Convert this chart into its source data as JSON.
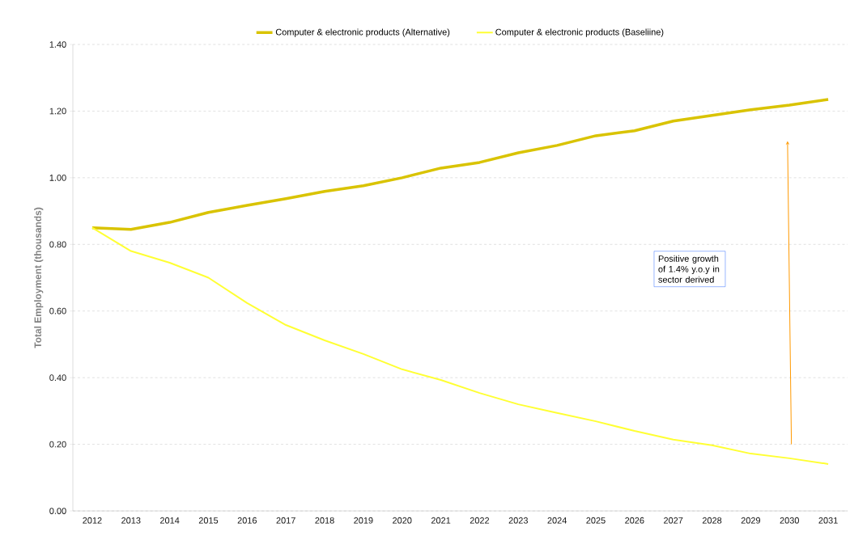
{
  "chart_data": {
    "type": "line",
    "ylabel": "Total Employment (thousands)",
    "categories": [
      "2012",
      "2013",
      "2014",
      "2015",
      "2016",
      "2017",
      "2018",
      "2019",
      "2020",
      "2021",
      "2022",
      "2023",
      "2024",
      "2025",
      "2026",
      "2027",
      "2028",
      "2029",
      "2030",
      "2031"
    ],
    "series": [
      {
        "name": "Computer & electronic products (Alternative)",
        "color": "#d9c300",
        "values": [
          0.85,
          0.845,
          0.866,
          0.896,
          0.917,
          0.937,
          0.959,
          0.976,
          1.0,
          1.029,
          1.046,
          1.075,
          1.097,
          1.126,
          1.141,
          1.17,
          1.187,
          1.204,
          1.218,
          1.235
        ]
      },
      {
        "name": "Computer & electronic products (Baseliine)",
        "color": "#ffff33",
        "values": [
          0.85,
          0.78,
          0.745,
          0.7,
          0.624,
          0.558,
          0.512,
          0.471,
          0.425,
          0.393,
          0.354,
          0.32,
          0.294,
          0.269,
          0.24,
          0.214,
          0.197,
          0.172,
          0.158,
          0.141
        ]
      }
    ],
    "ylim": [
      0,
      1.4
    ],
    "yticks": [
      {
        "value": 0,
        "label": "0.00"
      },
      {
        "value": 0.2,
        "label": "0.20"
      },
      {
        "value": 0.4,
        "label": "0.40"
      },
      {
        "value": 0.6,
        "label": "0.60"
      },
      {
        "value": 0.8,
        "label": "0.80"
      },
      {
        "value": 1.0,
        "label": "1.00"
      },
      {
        "value": 1.2,
        "label": "1.20"
      },
      {
        "value": 1.4,
        "label": "1.40"
      }
    ],
    "grid": "y",
    "legend": "top",
    "marker": "none",
    "line_style": "solid",
    "annotations": [
      "Positive growth of 1.4% y.o.y in sector derived"
    ]
  }
}
